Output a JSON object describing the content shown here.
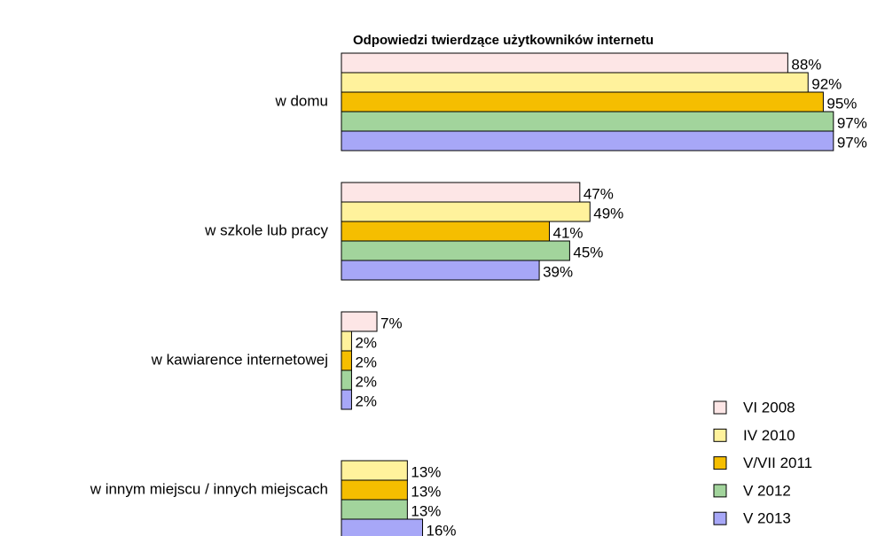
{
  "chart_data": {
    "type": "bar",
    "orientation": "horizontal",
    "title": "Odpowiedzi twierdzące użytkowników internetu",
    "categories": [
      "w domu",
      "w szkole lub pracy",
      "w kawiarence internetowej",
      "w innym miejscu / innych miejscach"
    ],
    "series": [
      {
        "name": "VI 2008",
        "color": "#fde6e6",
        "values": [
          88,
          47,
          7,
          null
        ],
        "value_labels": [
          "88%",
          "47%",
          "7%",
          null
        ]
      },
      {
        "name": "IV 2010",
        "color": "#fff29c",
        "values": [
          92,
          49,
          2,
          13
        ],
        "value_labels": [
          "92%",
          "49%",
          "2%",
          "13%"
        ]
      },
      {
        "name": "V/VII 2011",
        "color": "#f5be00",
        "values": [
          95,
          41,
          2,
          13
        ],
        "value_labels": [
          "95%",
          "41%",
          "2%",
          "13%"
        ]
      },
      {
        "name": "V 2012",
        "color": "#a2d49c",
        "values": [
          97,
          45,
          2,
          13
        ],
        "value_labels": [
          "97%",
          "45%",
          "2%",
          "13%"
        ]
      },
      {
        "name": "V 2013",
        "color": "#a7a7f7",
        "values": [
          97,
          39,
          2,
          16
        ],
        "value_labels": [
          "97%",
          "39%",
          "2%",
          "16%"
        ]
      }
    ],
    "legend": "bottom-right"
  }
}
